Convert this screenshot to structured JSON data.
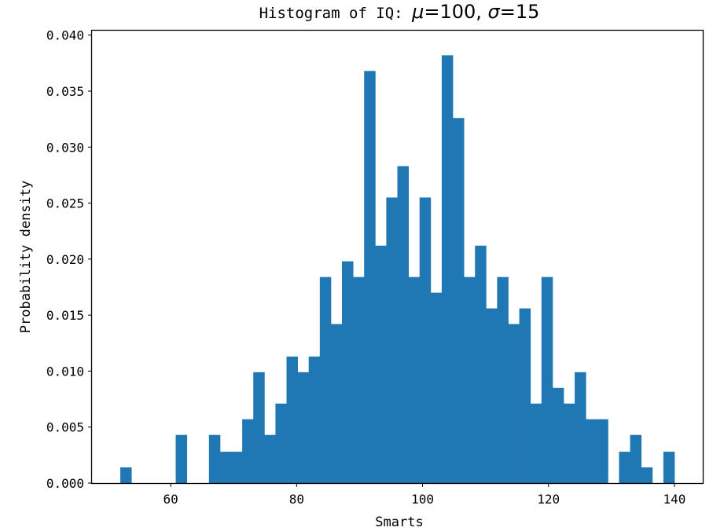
{
  "chart_data": {
    "type": "bar",
    "histogram": true,
    "title": {
      "prefix": "Histogram of IQ: ",
      "mu_symbol": "μ",
      "mu_value": "=100",
      "separator": ", ",
      "sigma_symbol": "σ",
      "sigma_value": "=15"
    },
    "xlabel": "Smarts",
    "ylabel": "Probability density",
    "xlim": [
      47.5,
      144.5
    ],
    "ylim": [
      0.0,
      0.0404
    ],
    "xticks": [
      60,
      80,
      100,
      120,
      140
    ],
    "xtick_labels": [
      "60",
      "80",
      "100",
      "120",
      "140"
    ],
    "yticks": [
      0.0,
      0.005,
      0.01,
      0.015,
      0.02,
      0.025,
      0.03,
      0.035,
      0.04
    ],
    "ytick_labels": [
      "0.000",
      "0.005",
      "0.010",
      "0.015",
      "0.020",
      "0.025",
      "0.030",
      "0.035",
      "0.040"
    ],
    "grid": false,
    "bar_color": "#1f77b4",
    "bin_start": 52.0,
    "bin_width": 1.76,
    "values": [
      0.0014,
      0.0,
      0.0,
      0.0,
      0.0,
      0.0043,
      0.0,
      0.0,
      0.0043,
      0.0028,
      0.0028,
      0.0057,
      0.0099,
      0.0043,
      0.0071,
      0.0113,
      0.0099,
      0.0113,
      0.0184,
      0.0142,
      0.0198,
      0.0184,
      0.0368,
      0.0212,
      0.0255,
      0.0283,
      0.0184,
      0.0255,
      0.017,
      0.0382,
      0.0326,
      0.0184,
      0.0212,
      0.0156,
      0.0184,
      0.0142,
      0.0156,
      0.0071,
      0.0184,
      0.0085,
      0.0071,
      0.0099,
      0.0057,
      0.0057,
      0.0,
      0.0028,
      0.0043,
      0.0014,
      0.0,
      0.0028
    ]
  }
}
